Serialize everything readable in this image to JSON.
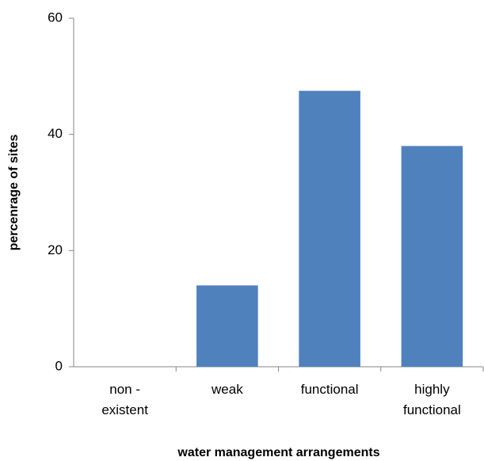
{
  "chart_data": {
    "type": "bar",
    "x_label": "water management arrangements",
    "y_label": "percenrage of sites",
    "categories": [
      "non - existent",
      "weak",
      "functional",
      "highly functional"
    ],
    "values": [
      0,
      14,
      47.5,
      38
    ],
    "color": "#4f81bd",
    "ylim": [
      0,
      60
    ],
    "yticks": [
      0,
      20,
      40,
      60
    ],
    "grid": false
  }
}
